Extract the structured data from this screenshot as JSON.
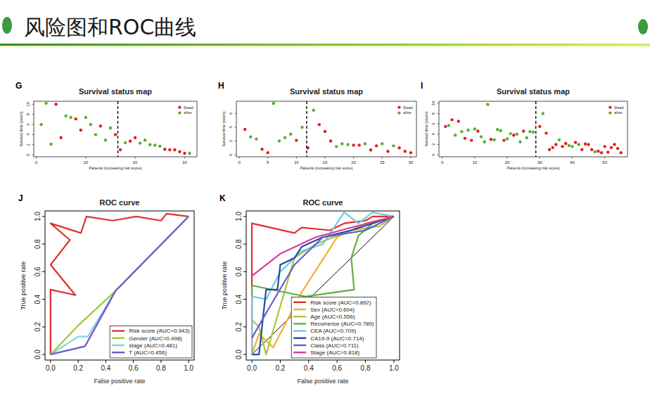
{
  "slide": {
    "title": "风险图和ROC曲线"
  },
  "chart_data": [
    {
      "type": "scatter",
      "panel": "G",
      "title": "Survival status map",
      "x_label": "Patients (increasing risk score)",
      "y_label": "Survival time (years)",
      "xlim": [
        -0.5,
        32.5
      ],
      "ylim": [
        -0.4,
        10.6
      ],
      "xticks": [
        0,
        10,
        20,
        30
      ],
      "yticks": [
        0,
        2,
        4,
        6,
        8,
        10
      ],
      "cutoff": 16.5,
      "legend": "top-right",
      "marker": "circle",
      "series": [
        {
          "name": "Dead",
          "color": "#e02020",
          "x": [
            4,
            5,
            8,
            9,
            13,
            16,
            17,
            19,
            20,
            26,
            27,
            28,
            29,
            30
          ],
          "values": [
            10.0,
            3.4,
            7.1,
            4.9,
            5.7,
            4.0,
            1.0,
            2.7,
            3.4,
            1.1,
            1.0,
            1.0,
            0.6,
            0.3
          ]
        },
        {
          "name": "alive",
          "color": "#55b030",
          "x": [
            1,
            2,
            3,
            6,
            7,
            10,
            11,
            12,
            14,
            15,
            18,
            21,
            22,
            23,
            24,
            25,
            31
          ],
          "values": [
            6.0,
            10.2,
            2.1,
            7.7,
            7.4,
            7.4,
            6.0,
            4.0,
            2.9,
            5.3,
            2.4,
            2.3,
            2.9,
            2.0,
            1.9,
            1.7,
            0.3
          ]
        }
      ]
    },
    {
      "type": "scatter",
      "panel": "H",
      "title": "Survival status map",
      "x_label": "Patients (increasing risk score)",
      "y_label": "Survival time (years)",
      "xlim": [
        -0.5,
        31
      ],
      "ylim": [
        -0.3,
        7.8
      ],
      "xticks": [
        0,
        5,
        10,
        15,
        20,
        25,
        30
      ],
      "yticks": [
        0,
        2,
        4,
        6
      ],
      "cutoff": 11.8,
      "legend": "top-right",
      "marker": "circle",
      "series": [
        {
          "name": "Dead",
          "color": "#e02020",
          "x": [
            1,
            4,
            5,
            10,
            12,
            14,
            15,
            16,
            20,
            21,
            23,
            24,
            26,
            28,
            29,
            30
          ],
          "values": [
            3.7,
            0.8,
            0.3,
            2.1,
            1.0,
            4.4,
            3.4,
            2.0,
            1.4,
            1.4,
            0.7,
            1.3,
            0.5,
            1.0,
            0.5,
            0.3
          ]
        },
        {
          "name": "alive",
          "color": "#55b030",
          "x": [
            2,
            3,
            6,
            7,
            8,
            9,
            11,
            13,
            17,
            18,
            19,
            22,
            25,
            27
          ],
          "values": [
            2.6,
            2.3,
            7.5,
            2.0,
            2.5,
            3.0,
            4.0,
            6.5,
            1.2,
            1.6,
            1.5,
            1.6,
            1.6,
            1.3
          ]
        }
      ]
    },
    {
      "type": "scatter",
      "panel": "I",
      "title": "Survival status map",
      "x_label": "Patients (increasing risk score)",
      "y_label": "Survival time (years)",
      "xlim": [
        -1,
        57
      ],
      "ylim": [
        -0.4,
        10.4
      ],
      "xticks": [
        0,
        10,
        20,
        30,
        40,
        50
      ],
      "yticks": [
        0,
        2,
        4,
        6,
        8,
        10
      ],
      "cutoff": 28.8,
      "legend": "top-right",
      "marker": "circle",
      "series": [
        {
          "name": "Dead",
          "color": "#e02020",
          "x": [
            1,
            3,
            5,
            7,
            9,
            11,
            15,
            19,
            22,
            25,
            30,
            32,
            33,
            34,
            35,
            37,
            38,
            41,
            43,
            44,
            45,
            46,
            48,
            49,
            50,
            51,
            52,
            53,
            54,
            55
          ],
          "values": [
            5.5,
            6.8,
            6.5,
            3.2,
            2.8,
            4.6,
            3.0,
            2.8,
            3.8,
            4.6,
            5.5,
            4.2,
            1.0,
            1.4,
            2.0,
            1.6,
            2.2,
            2.4,
            1.0,
            2.1,
            2.0,
            1.0,
            0.7,
            0.4,
            1.6,
            0.5,
            1.4,
            2.0,
            1.2,
            0.4
          ]
        },
        {
          "name": "alive",
          "color": "#55b030",
          "x": [
            2,
            4,
            6,
            8,
            10,
            12,
            13,
            14,
            16,
            17,
            18,
            20,
            21,
            23,
            24,
            26,
            27,
            28,
            31,
            36,
            39,
            40,
            42,
            47
          ],
          "values": [
            5.7,
            3.8,
            4.5,
            4.8,
            5.0,
            3.5,
            2.5,
            9.8,
            2.9,
            4.9,
            4.7,
            3.1,
            4.1,
            4.0,
            2.5,
            3.3,
            4.5,
            4.4,
            8.0,
            2.9,
            1.8,
            1.6,
            2.0,
            0.6
          ]
        }
      ]
    },
    {
      "type": "line",
      "panel": "J",
      "title": "ROC curve",
      "x_label": "False positive rate",
      "y_label": "True positive rate",
      "xlim": [
        -0.04,
        1.04
      ],
      "ylim": [
        -0.04,
        1.04
      ],
      "xticks": [
        {
          "value": 0,
          "label": "0.0"
        },
        {
          "value": 0.2,
          "label": "0.2"
        },
        {
          "value": 0.4,
          "label": "0.4"
        },
        {
          "value": 0.6,
          "label": "0.6"
        },
        {
          "value": 0.8,
          "label": "0.8"
        },
        {
          "value": 1,
          "label": "1.0"
        }
      ],
      "yticks": [
        {
          "value": 0,
          "label": "0.0"
        },
        {
          "value": 0.2,
          "label": "0.2"
        },
        {
          "value": 0.4,
          "label": "0.4"
        },
        {
          "value": 0.6,
          "label": "0.6"
        },
        {
          "value": 0.8,
          "label": "0.8"
        },
        {
          "value": 1,
          "label": "1.0"
        }
      ],
      "legend": "bottom-right",
      "series": [
        {
          "name": "Risk score (AUC=0.943)",
          "color": "#e03030",
          "x": [
            0,
            0,
            0.18,
            0,
            0.14,
            0,
            0.22,
            0.26,
            0.45,
            0.62,
            0.8,
            0.84,
            1
          ],
          "values": [
            0,
            0.47,
            0.43,
            0.65,
            0.83,
            0.95,
            0.88,
            1.0,
            0.97,
            1.0,
            0.97,
            1.02,
            1
          ]
        },
        {
          "name": "Gender (AUC=0.498)",
          "color": "#9acd32",
          "x": [
            0,
            0.2,
            0.47,
            1
          ],
          "values": [
            0,
            0.21,
            0.46,
            1
          ]
        },
        {
          "name": "stage (AUC=0.481)",
          "color": "#87cee0",
          "x": [
            0,
            0.2,
            0.27,
            0.47,
            1
          ],
          "values": [
            0,
            0.13,
            0.13,
            0.46,
            1
          ]
        },
        {
          "name": "T (AUC=0.456)",
          "color": "#6a5acd",
          "x": [
            0,
            0.25,
            0.47,
            1
          ],
          "values": [
            0,
            0.06,
            0.46,
            1
          ]
        }
      ]
    },
    {
      "type": "line",
      "panel": "K",
      "title": "ROC curve",
      "x_label": "False positive rate",
      "y_label": "True positive rate",
      "xlim": [
        -0.04,
        1.04
      ],
      "ylim": [
        -0.04,
        1.04
      ],
      "xticks": [
        {
          "value": 0,
          "label": "0.0"
        },
        {
          "value": 0.2,
          "label": "0.2"
        },
        {
          "value": 0.4,
          "label": "0.4"
        },
        {
          "value": 0.6,
          "label": "0.6"
        },
        {
          "value": 0.8,
          "label": "0.8"
        },
        {
          "value": 1,
          "label": "1.0"
        }
      ],
      "yticks": [
        {
          "value": 0,
          "label": "0.0"
        },
        {
          "value": 0.2,
          "label": "0.2"
        },
        {
          "value": 0.4,
          "label": "0.4"
        },
        {
          "value": 0.6,
          "label": "0.6"
        },
        {
          "value": 0.8,
          "label": "0.8"
        },
        {
          "value": 1,
          "label": "1.0"
        }
      ],
      "legend": "bottom-right",
      "reference_line": {
        "x": [
          0,
          1
        ],
        "values": [
          0,
          1
        ]
      },
      "series": [
        {
          "name": "Risk score (AUC=0.892)",
          "color": "#e03030",
          "x": [
            0,
            0,
            0.3,
            0.35,
            0.55,
            0.65,
            0.8,
            0.85,
            1
          ],
          "values": [
            0,
            0.95,
            0.88,
            0.92,
            0.9,
            0.95,
            0.97,
            1.0,
            1
          ]
        },
        {
          "name": "Sex (AUC=0.604)",
          "color": "#f0b030",
          "x": [
            0,
            0.05,
            0.15,
            0.35,
            0.6,
            0.8,
            1
          ],
          "values": [
            0,
            0.15,
            0.05,
            0.45,
            0.85,
            0.95,
            1
          ]
        },
        {
          "name": "Age (AUC=0.556)",
          "color": "#a8c838",
          "x": [
            0,
            0.05,
            0.1,
            0.3,
            0.45,
            0.7,
            0.9,
            1
          ],
          "values": [
            0.25,
            0.2,
            0,
            0.7,
            0.8,
            0.9,
            0.93,
            1
          ]
        },
        {
          "name": "Recurrence (AUC=0.789)",
          "color": "#60b040",
          "x": [
            0,
            0,
            0.38,
            0.72,
            0.7,
            0.75,
            0.85,
            1
          ],
          "values": [
            0,
            0.5,
            0.42,
            0.47,
            0.7,
            0.86,
            0.95,
            1
          ]
        },
        {
          "name": "CEA (AUC=0.709)",
          "color": "#70c8e0",
          "x": [
            0,
            0,
            0.1,
            0.2,
            0.35,
            0.5,
            0.65,
            0.75,
            0.85,
            1
          ],
          "values": [
            0,
            0.42,
            0.4,
            0.6,
            0.75,
            0.8,
            1.03,
            0.95,
            1.03,
            1
          ]
        },
        {
          "name": "CA19-9 (AUC=0.714)",
          "color": "#2848a0",
          "x": [
            0,
            0.05,
            0.1,
            0.18,
            0.2,
            0.3,
            0.35,
            0.5,
            0.7,
            1
          ],
          "values": [
            0,
            0,
            0.47,
            0.47,
            0.65,
            0.7,
            0.78,
            0.85,
            0.9,
            1
          ]
        },
        {
          "name": "Class (AUC=0.711)",
          "color": "#6a5acd",
          "x": [
            0,
            0.1,
            0.3,
            0.5,
            0.8,
            1
          ],
          "values": [
            0.12,
            0.3,
            0.65,
            0.85,
            0.9,
            1
          ]
        },
        {
          "name": "Stage (AUC=0.818)",
          "color": "#d0409a",
          "x": [
            0,
            0.2,
            0.45,
            0.7,
            1
          ],
          "values": [
            0.57,
            0.73,
            0.85,
            0.92,
            1
          ]
        }
      ]
    }
  ]
}
